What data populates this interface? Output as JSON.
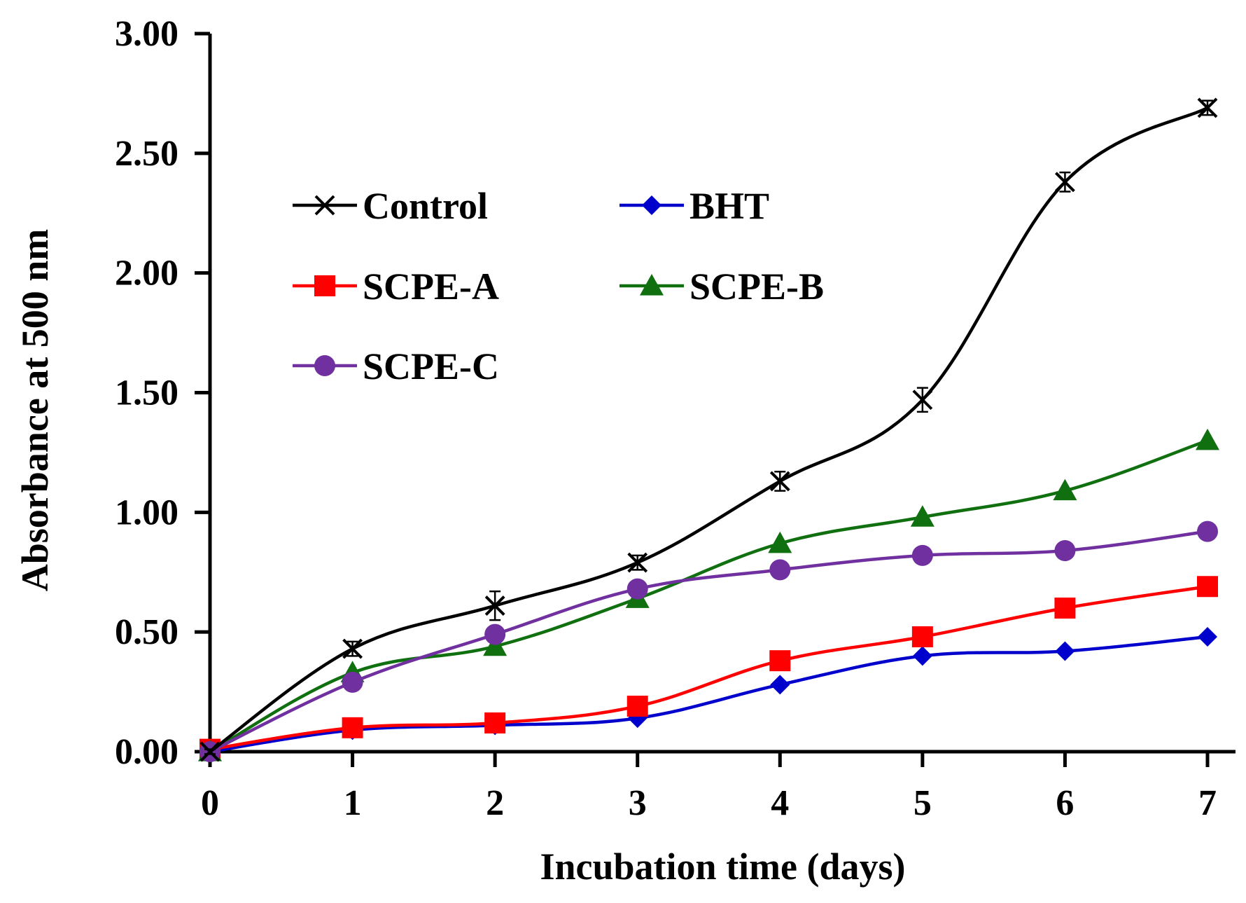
{
  "chart_data": {
    "type": "line",
    "title": "",
    "xlabel": "Incubation time (days)",
    "ylabel": "Absorbance at 500 nm",
    "x": [
      0,
      1,
      2,
      3,
      4,
      5,
      6,
      7
    ],
    "xlim": [
      0,
      7
    ],
    "ylim": [
      0,
      3
    ],
    "x_ticks": [
      "0",
      "1",
      "2",
      "3",
      "4",
      "5",
      "6",
      "7"
    ],
    "y_ticks": [
      "0.00",
      "0.50",
      "1.00",
      "1.50",
      "2.00",
      "2.50",
      "3.00"
    ],
    "grid": false,
    "legend_position": "top-left",
    "series": [
      {
        "name": "Control",
        "color": "#000000",
        "marker": "x",
        "values": [
          0.0,
          0.43,
          0.61,
          0.79,
          1.13,
          1.47,
          2.38,
          2.69
        ],
        "errors": [
          0.01,
          0.03,
          0.06,
          0.03,
          0.04,
          0.05,
          0.04,
          0.03
        ]
      },
      {
        "name": "BHT",
        "color": "#0000cc",
        "marker": "diamond",
        "values": [
          0.0,
          0.09,
          0.11,
          0.14,
          0.28,
          0.4,
          0.42,
          0.48
        ],
        "errors": [
          0.0,
          0.0,
          0.03,
          0.0,
          0.0,
          0.0,
          0.0,
          0.0
        ]
      },
      {
        "name": "SCPE-A",
        "color": "#ff0000",
        "marker": "square",
        "values": [
          0.01,
          0.1,
          0.12,
          0.19,
          0.38,
          0.48,
          0.6,
          0.69
        ],
        "errors": [
          0.0,
          0.0,
          0.02,
          0.0,
          0.0,
          0.02,
          0.0,
          0.0
        ]
      },
      {
        "name": "SCPE-B",
        "color": "#107010",
        "marker": "triangle",
        "values": [
          0.0,
          0.33,
          0.44,
          0.64,
          0.87,
          0.98,
          1.09,
          1.3
        ],
        "errors": [
          0.0,
          0.0,
          0.0,
          0.0,
          0.0,
          0.0,
          0.0,
          0.0
        ]
      },
      {
        "name": "SCPE-C",
        "color": "#7030a0",
        "marker": "circle",
        "values": [
          0.0,
          0.29,
          0.49,
          0.68,
          0.76,
          0.82,
          0.84,
          0.92
        ],
        "errors": [
          0.0,
          0.0,
          0.0,
          0.0,
          0.0,
          0.0,
          0.0,
          0.0
        ]
      }
    ]
  }
}
